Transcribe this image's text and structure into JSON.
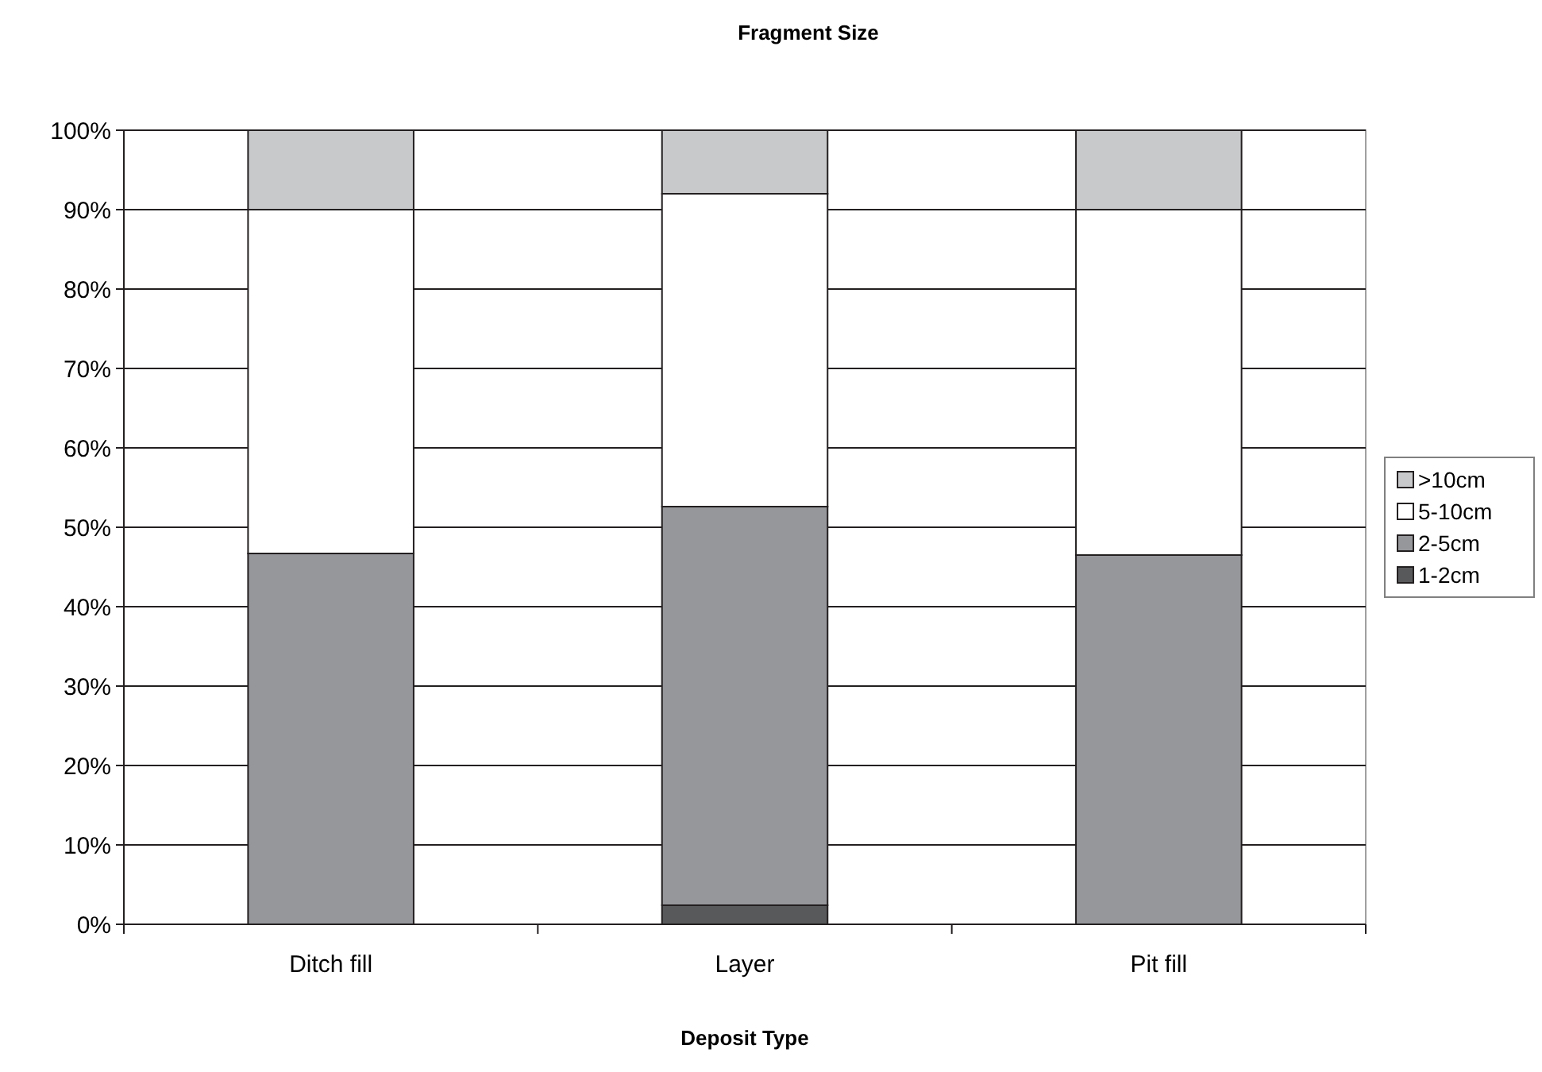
{
  "chart_data": {
    "type": "bar",
    "stacked": true,
    "title": "Fragment Size",
    "xlabel": "Deposit Type",
    "categories": [
      "Ditch fill",
      "Layer",
      "Pit fill"
    ],
    "series": [
      {
        "name": "1-2cm",
        "color": "#58595b",
        "values": [
          0,
          2.4,
          0
        ]
      },
      {
        "name": "2-5cm",
        "color": "#96979b",
        "values": [
          46.7,
          50.2,
          46.5
        ]
      },
      {
        "name": "5-10cm",
        "color": "#ffffff",
        "values": [
          43.3,
          39.4,
          43.5
        ]
      },
      {
        "name": ">10cm",
        "color": "#c8c9cb",
        "values": [
          10,
          8,
          10
        ]
      }
    ],
    "ylim": [
      0,
      100
    ],
    "yticks": [
      {
        "value": 0,
        "label": "0%"
      },
      {
        "value": 10,
        "label": "10%"
      },
      {
        "value": 20,
        "label": "20%"
      },
      {
        "value": 30,
        "label": "30%"
      },
      {
        "value": 40,
        "label": "40%"
      },
      {
        "value": 50,
        "label": "50%"
      },
      {
        "value": 60,
        "label": "60%"
      },
      {
        "value": 70,
        "label": "70%"
      },
      {
        "value": 80,
        "label": "80%"
      },
      {
        "value": 90,
        "label": "90%"
      },
      {
        "value": 100,
        "label": "100%"
      }
    ],
    "grid": "y",
    "legend": "right"
  }
}
